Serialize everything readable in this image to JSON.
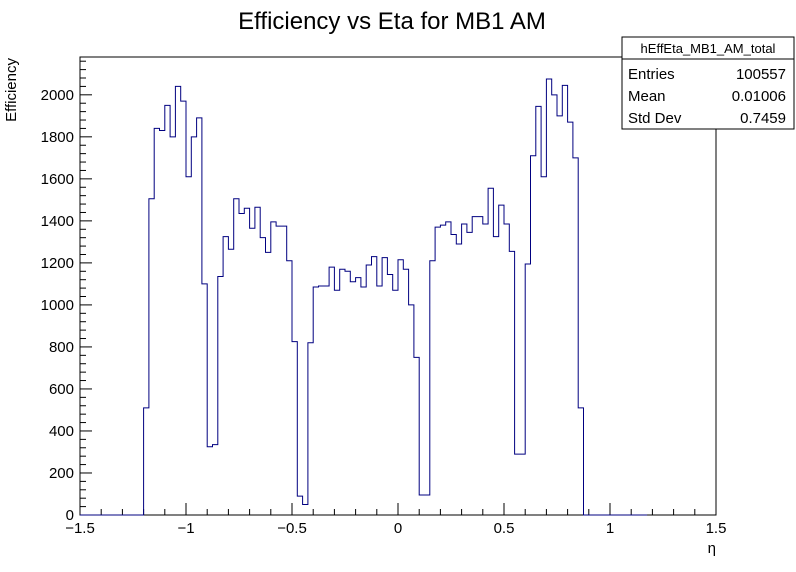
{
  "chart_data": {
    "type": "bar",
    "title": "Efficiency vs Eta for MB1 AM",
    "xlabel": "η",
    "ylabel": "Efficiency",
    "xlim": [
      -1.5,
      1.5
    ],
    "ylim": [
      0,
      2180
    ],
    "x_ticks": [
      -1.5,
      -1,
      -0.5,
      0,
      0.5,
      1,
      1.5
    ],
    "x_tick_labels": [
      "−1.5",
      "−1",
      "−0.5",
      "0",
      "0.5",
      "1",
      "1.5"
    ],
    "y_ticks": [
      0,
      200,
      400,
      600,
      800,
      1000,
      1200,
      1400,
      1600,
      1800,
      2000
    ],
    "y_tick_labels": [
      "0",
      "200",
      "400",
      "600",
      "800",
      "1000",
      "1200",
      "1400",
      "1600",
      "1800",
      "2000"
    ],
    "line_color": "#000080",
    "grid": false,
    "series": [
      {
        "name": "hEffEta_MB1_AM_total",
        "bin_edges_start": -1.5,
        "bin_width": 0.025,
        "values": [
          0,
          0,
          0,
          0,
          0,
          0,
          0,
          0,
          0,
          0,
          0,
          0,
          510,
          1505,
          1840,
          1830,
          1950,
          1800,
          2040,
          1970,
          1610,
          1800,
          1890,
          1100,
          325,
          335,
          1135,
          1325,
          1265,
          1505,
          1435,
          1460,
          1365,
          1465,
          1320,
          1250,
          1395,
          1375,
          1375,
          1210,
          825,
          90,
          50,
          820,
          1085,
          1090,
          1090,
          1180,
          1070,
          1170,
          1160,
          1110,
          1130,
          1085,
          1190,
          1230,
          1090,
          1225,
          1145,
          1070,
          1215,
          1170,
          1000,
          750,
          95,
          95,
          1210,
          1370,
          1380,
          1395,
          1335,
          1290,
          1385,
          1345,
          1420,
          1420,
          1385,
          1555,
          1325,
          1475,
          1385,
          1255,
          290,
          290,
          1195,
          1710,
          1945,
          1610,
          2075,
          2000,
          1900,
          2045,
          1870,
          1700,
          510,
          0,
          0,
          0,
          0,
          0,
          0,
          0,
          0,
          0,
          0,
          0,
          0
        ]
      }
    ],
    "stats": {
      "name": "hEffEta_MB1_AM_total",
      "rows": [
        {
          "label": "Entries",
          "value": "100557"
        },
        {
          "label": "Mean",
          "value": "0.01006"
        },
        {
          "label": "Std Dev",
          "value": "0.7459"
        }
      ]
    }
  }
}
